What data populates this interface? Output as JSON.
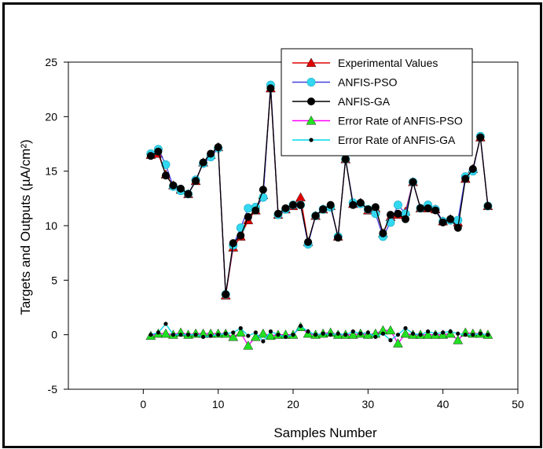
{
  "chart_data": {
    "type": "line",
    "title": "",
    "xlabel": "Samples Number",
    "ylabel": "Targets and Outputs (µA/cm²)",
    "xlim": [
      -10,
      50
    ],
    "ylim": [
      -5,
      25
    ],
    "xticks": [
      0,
      10,
      20,
      30,
      40,
      50
    ],
    "yticks": [
      -5,
      0,
      5,
      10,
      15,
      20,
      25
    ],
    "grid": false,
    "legend_position": "top-right",
    "x": [
      1,
      2,
      3,
      4,
      5,
      6,
      7,
      8,
      9,
      10,
      11,
      12,
      13,
      14,
      15,
      16,
      17,
      18,
      19,
      20,
      21,
      22,
      23,
      24,
      25,
      26,
      27,
      28,
      29,
      30,
      31,
      32,
      33,
      34,
      35,
      36,
      37,
      38,
      39,
      40,
      41,
      42,
      43,
      44,
      45,
      46
    ],
    "series": [
      {
        "name": "Experimental Values",
        "color": "#e00000",
        "marker": "triangle",
        "values": [
          16.5,
          16.6,
          14.7,
          13.7,
          13.3,
          12.9,
          14.1,
          15.8,
          16.5,
          17.2,
          3.6,
          8.0,
          9.0,
          10.5,
          11.4,
          12.8,
          22.6,
          11.0,
          11.5,
          11.8,
          12.6,
          8.5,
          10.9,
          11.5,
          11.8,
          9.0,
          16.1,
          12.0,
          12.1,
          11.4,
          11.6,
          9.3,
          10.8,
          11.0,
          11.3,
          14.0,
          11.6,
          11.6,
          11.5,
          10.4,
          10.6,
          10.3,
          14.3,
          15.2,
          18.1,
          11.8
        ]
      },
      {
        "name": "ANFIS-PSO",
        "color": "#4040e0",
        "marker": "circle-cyan",
        "values": [
          16.6,
          17.0,
          15.6,
          13.6,
          13.2,
          12.9,
          14.2,
          15.7,
          16.3,
          17.1,
          3.7,
          8.2,
          9.8,
          11.6,
          11.7,
          12.6,
          22.9,
          11.0,
          11.5,
          11.9,
          11.9,
          8.3,
          10.9,
          11.5,
          11.7,
          9.0,
          16.1,
          12.1,
          12.0,
          11.5,
          11.1,
          9.0,
          10.3,
          11.9,
          11.1,
          14.0,
          11.6,
          11.9,
          11.5,
          10.4,
          10.5,
          10.5,
          14.5,
          15.0,
          18.2,
          11.8
        ]
      },
      {
        "name": "ANFIS-GA",
        "color": "#000000",
        "marker": "circle-black",
        "values": [
          16.4,
          16.8,
          14.6,
          13.7,
          13.4,
          12.9,
          14.1,
          15.8,
          16.6,
          17.2,
          3.7,
          8.4,
          9.1,
          10.8,
          11.4,
          13.3,
          22.6,
          11.1,
          11.6,
          11.9,
          11.9,
          8.5,
          10.9,
          11.5,
          11.9,
          8.9,
          16.1,
          11.9,
          12.1,
          11.5,
          11.7,
          9.3,
          11.0,
          11.1,
          10.6,
          14.0,
          11.6,
          11.6,
          11.4,
          10.3,
          10.6,
          9.8,
          14.3,
          15.2,
          18.1,
          11.8
        ]
      },
      {
        "name": "Error Rate of ANFIS-PSO",
        "color": "#ff00ff",
        "marker": "triangle-green",
        "values": [
          -0.1,
          0.1,
          0.1,
          0.0,
          0.2,
          0.0,
          0.1,
          0.1,
          0.1,
          0.1,
          0.1,
          -0.2,
          0.2,
          -1.0,
          -0.2,
          0.1,
          -0.1,
          0.0,
          0.0,
          0.0,
          0.7,
          0.1,
          0.0,
          0.1,
          0.2,
          0.0,
          0.0,
          0.0,
          0.1,
          0.0,
          0.1,
          0.4,
          0.4,
          -0.8,
          0.1,
          0.0,
          0.0,
          0.0,
          0.0,
          0.0,
          0.1,
          -0.5,
          0.2,
          0.1,
          0.1,
          0.0
        ]
      },
      {
        "name": "Error Rate of ANFIS-GA",
        "color": "#00d8e8",
        "marker": "dot-black",
        "values": [
          0.0,
          0.2,
          1.0,
          0.0,
          0.0,
          0.0,
          0.0,
          -0.2,
          -0.1,
          0.0,
          0.1,
          0.2,
          0.6,
          -0.1,
          0.2,
          -0.6,
          0.3,
          0.0,
          -0.2,
          0.0,
          0.8,
          0.3,
          0.0,
          0.1,
          0.0,
          0.1,
          0.0,
          0.3,
          0.1,
          0.2,
          -0.2,
          0.1,
          -0.5,
          0.0,
          0.6,
          0.1,
          0.0,
          0.3,
          0.1,
          0.2,
          0.3,
          0.1,
          0.0,
          0.0,
          0.1,
          0.0
        ]
      }
    ]
  }
}
